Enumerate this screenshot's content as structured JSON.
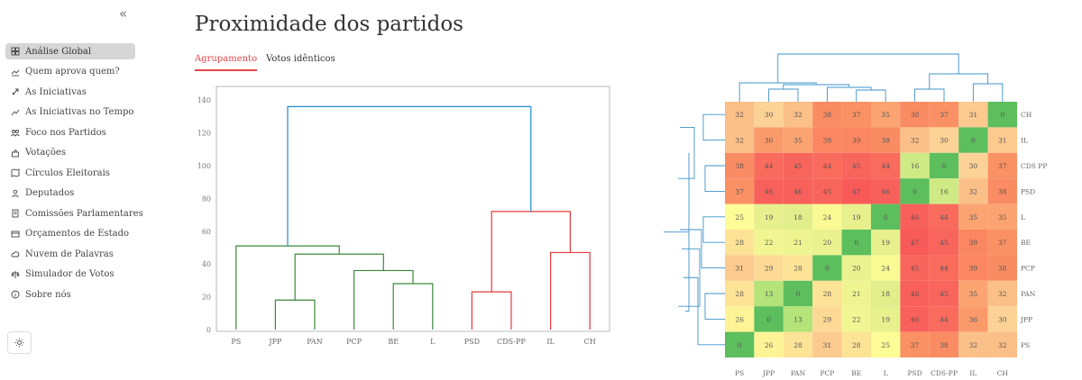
{
  "sidebar": {
    "collapse_icon": "«",
    "items": [
      {
        "label": "Análise Global",
        "icon": "grid-icon",
        "active": true
      },
      {
        "label": "Quem aprova quem?",
        "icon": "handshake-icon"
      },
      {
        "label": "As Iniciativas",
        "icon": "rocket-icon"
      },
      {
        "label": "As Iniciativas no Tempo",
        "icon": "trend-icon"
      },
      {
        "label": "Foco nos Partidos",
        "icon": "people-icon"
      },
      {
        "label": "Votações",
        "icon": "ballot-icon"
      },
      {
        "label": "Círculos Eleitorais",
        "icon": "map-icon"
      },
      {
        "label": "Deputados",
        "icon": "person-icon"
      },
      {
        "label": "Comissões Parlamentares",
        "icon": "document-icon"
      },
      {
        "label": "Orçamentos de Estado",
        "icon": "budget-icon"
      },
      {
        "label": "Nuvem de Palavras",
        "icon": "cloud-icon"
      },
      {
        "label": "Simulador de Votos",
        "icon": "scale-icon"
      },
      {
        "label": "Sobre nós",
        "icon": "info-icon"
      }
    ]
  },
  "page": {
    "title": "Proximidade dos partidos",
    "tabs": [
      {
        "label": "Agrupamento",
        "active": true
      },
      {
        "label": "Votos idênticos",
        "active": false
      }
    ]
  },
  "colors": {
    "accent": "#e0474c",
    "green": "#3a8a3a",
    "red": "#e23b3b",
    "blue": "#1f8fd0"
  },
  "chart_data": [
    {
      "type": "dendrogram",
      "leaves": [
        "PS",
        "JPP",
        "PAN",
        "PCP",
        "BE",
        "L",
        "PSD",
        "CDS-PP",
        "IL",
        "CH"
      ],
      "ylim": [
        0,
        145
      ],
      "yticks": [
        0,
        20,
        40,
        60,
        80,
        100,
        120,
        140
      ],
      "merges": [
        {
          "a": "JPP",
          "b": "PAN",
          "height": 18,
          "cluster": "green"
        },
        {
          "a": "BE",
          "b": "L",
          "height": 28,
          "cluster": "green"
        },
        {
          "a": "PCP",
          "b": "BE+L",
          "height": 36,
          "cluster": "green"
        },
        {
          "a": "JPP+PAN",
          "b": "PCP+BE+L",
          "height": 46,
          "cluster": "green"
        },
        {
          "a": "PS",
          "b": "rest-left",
          "height": 51,
          "cluster": "green"
        },
        {
          "a": "PSD",
          "b": "CDS-PP",
          "height": 23,
          "cluster": "red"
        },
        {
          "a": "IL",
          "b": "CH",
          "height": 47,
          "cluster": "red"
        },
        {
          "a": "PSD+CDS-PP",
          "b": "IL+CH",
          "height": 72,
          "cluster": "red"
        },
        {
          "a": "left",
          "b": "right",
          "height": 136,
          "cluster": "blue"
        }
      ]
    },
    {
      "type": "heatmap",
      "rows": [
        "CH",
        "IL",
        "CDS PP",
        "PSD",
        "L",
        "BE",
        "PCP",
        "PAN",
        "JPP",
        "PS"
      ],
      "columns": [
        "PS",
        "JPP",
        "PAN",
        "PCP",
        "BE",
        "L",
        "PSD",
        "CDS-PP",
        "IL",
        "CH"
      ],
      "values": [
        [
          32,
          30,
          32,
          38,
          37,
          35,
          38,
          37,
          31,
          0
        ],
        [
          32,
          36,
          35,
          39,
          39,
          38,
          32,
          30,
          0,
          31
        ],
        [
          38,
          44,
          45,
          44,
          45,
          44,
          16,
          0,
          30,
          37
        ],
        [
          37,
          46,
          46,
          45,
          47,
          46,
          0,
          16,
          32,
          38
        ],
        [
          25,
          19,
          18,
          24,
          19,
          0,
          46,
          44,
          35,
          35
        ],
        [
          28,
          22,
          21,
          20,
          0,
          19,
          47,
          45,
          39,
          37
        ],
        [
          31,
          29,
          28,
          0,
          20,
          24,
          45,
          44,
          39,
          38
        ],
        [
          28,
          13,
          0,
          28,
          21,
          18,
          46,
          45,
          35,
          32
        ],
        [
          26,
          0,
          13,
          29,
          22,
          19,
          46,
          44,
          36,
          30
        ],
        [
          0,
          26,
          28,
          31,
          28,
          25,
          37,
          38,
          32,
          32
        ]
      ]
    }
  ]
}
